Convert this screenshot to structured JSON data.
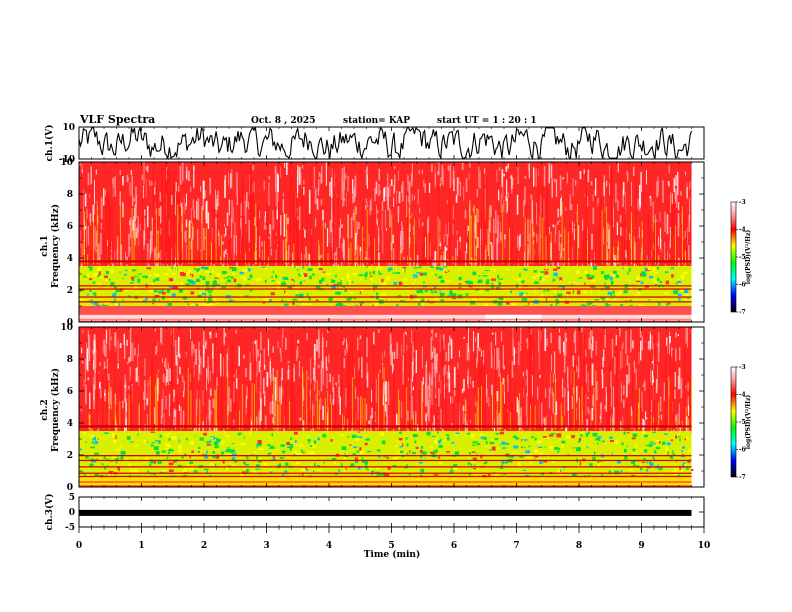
{
  "header": {
    "title": "VLF Spectra",
    "date": "Oct. 8 , 2025",
    "station": "station= KAP",
    "start": "start  UT =   1 : 20 : 1"
  },
  "chart_data": [
    {
      "type": "line",
      "name": "ch1-waveform",
      "ylabel": "ch.1(V)",
      "ylim": [
        -10,
        10
      ],
      "ytick_labels": [
        "10",
        "-10"
      ],
      "xlim": [
        0,
        10
      ]
    },
    {
      "type": "heatmap",
      "name": "ch1-spectrogram",
      "ylabel": "ch.1\nFrequency (kHz)",
      "ylabel_lines": [
        "ch.1",
        "Frequency (kHz)"
      ],
      "ylim": [
        0,
        10
      ],
      "ytick_labels": [
        "0",
        "2",
        "4",
        "6",
        "8",
        "10"
      ],
      "xlim": [
        0,
        10
      ],
      "data_extent_min": 9.8,
      "colorbar": {
        "label": "log(PSD)(V²/Hz)",
        "range": [
          -7,
          -3
        ],
        "tick_labels": [
          "-3",
          "-4",
          "-5",
          "-6",
          "-7"
        ]
      }
    },
    {
      "type": "heatmap",
      "name": "ch2-spectrogram",
      "ylabel": "ch.2\nFrequency (kHz)",
      "ylabel_lines": [
        "ch.2",
        "Frequency (kHz)"
      ],
      "ylim": [
        0,
        10
      ],
      "ytick_labels": [
        "0",
        "2",
        "4",
        "6",
        "8",
        "10"
      ],
      "xlim": [
        0,
        10
      ],
      "data_extent_min": 9.8,
      "colorbar": {
        "label": "log(PSD)(V²/Hz)",
        "range": [
          -7,
          -3
        ],
        "tick_labels": [
          "-3",
          "-4",
          "-5",
          "-6",
          "-7"
        ]
      }
    },
    {
      "type": "line",
      "name": "ch3-waveform",
      "ylabel": "ch.3(V)",
      "ylim": [
        -5,
        5
      ],
      "ytick_labels": [
        "5",
        "0",
        "-5"
      ],
      "level": -0.3,
      "xlim": [
        0,
        10
      ],
      "xlabel": "Time (min)",
      "xtick_labels": [
        "0",
        "1",
        "2",
        "3",
        "4",
        "5",
        "6",
        "7",
        "8",
        "9",
        "10"
      ]
    }
  ],
  "colors": {
    "axis": "#000000",
    "background": "#ffffff",
    "spec_high": "#ff2a2a",
    "spec_mid": "#ffff00",
    "spec_low": "#00e040"
  }
}
